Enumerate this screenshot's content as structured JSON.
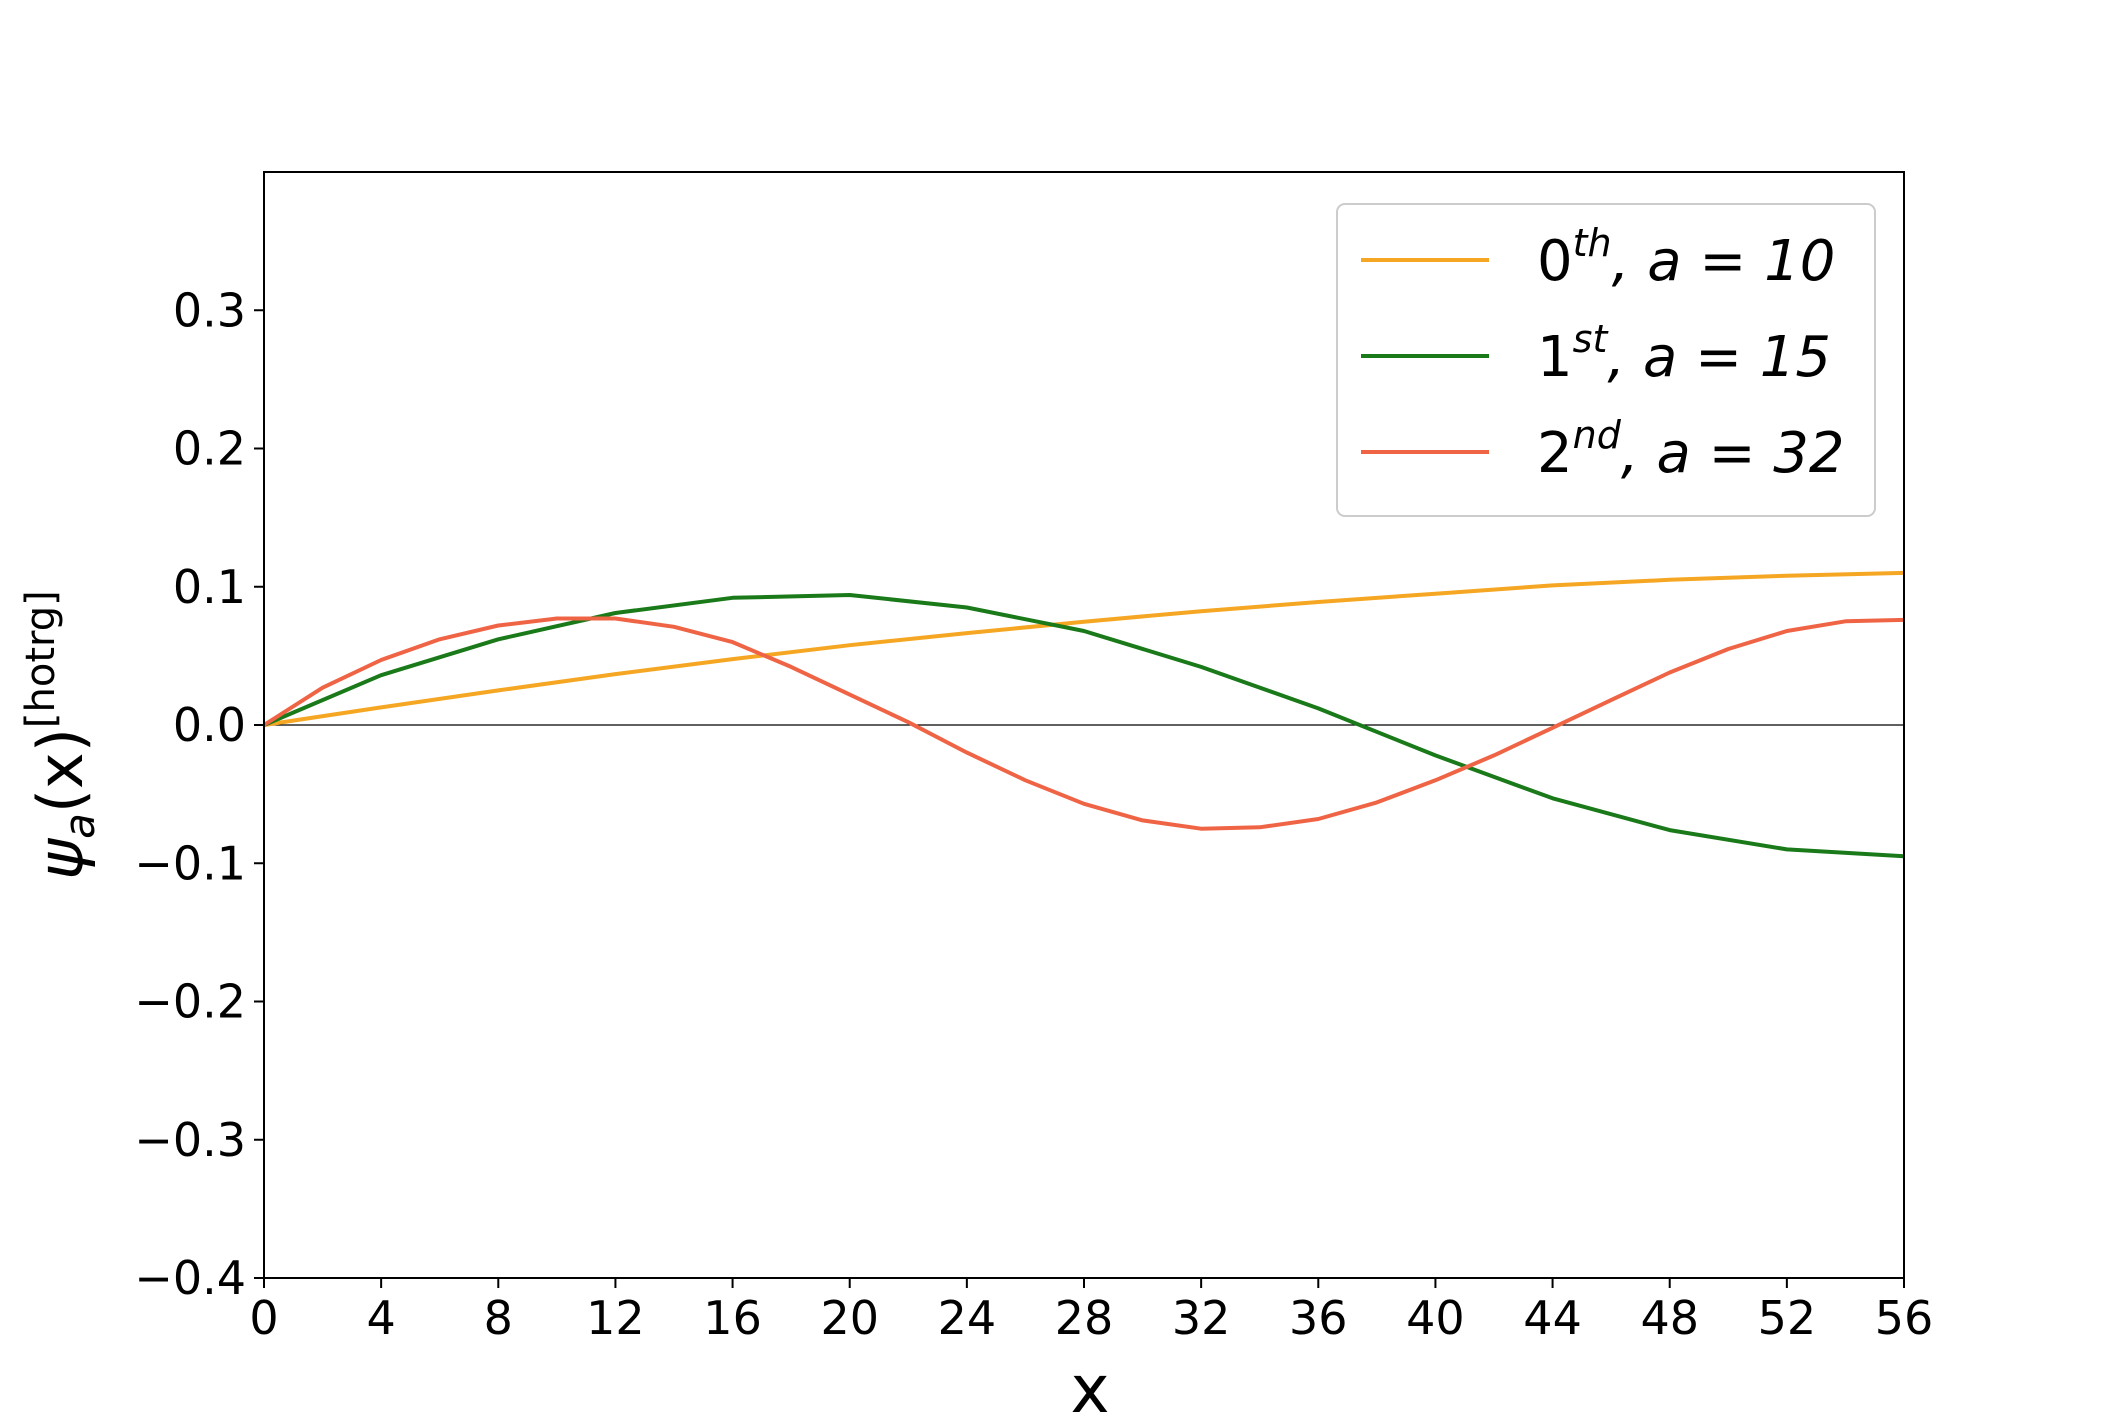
{
  "chart_data": {
    "type": "line",
    "xlabel": "x",
    "ylabel": {
      "symbol": "ψ",
      "subscript": "a",
      "argument": "(x)",
      "superscript": "[hotrg]"
    },
    "xlim": [
      0,
      56
    ],
    "ylim": [
      -0.4,
      0.4
    ],
    "xticks": [
      0,
      4,
      8,
      12,
      16,
      20,
      24,
      28,
      32,
      36,
      40,
      44,
      48,
      52,
      56
    ],
    "xtick_labels": [
      "0",
      "4",
      "8",
      "12",
      "16",
      "20",
      "24",
      "28",
      "32",
      "36",
      "40",
      "44",
      "48",
      "52",
      "56"
    ],
    "yticks": [
      0.3,
      0.2,
      0.1,
      0.0,
      -0.1,
      -0.2,
      -0.3,
      -0.4
    ],
    "ytick_labels": [
      "0.3",
      "0.2",
      "0.1",
      "0.0",
      "−0.1",
      "−0.2",
      "−0.3",
      "−0.4"
    ],
    "grid": false,
    "zero_line": true,
    "legend_position": "top-right",
    "series": [
      {
        "name": "0th, a = 10",
        "label_base": "0",
        "label_sup": "th",
        "label_rest": ", a = 10",
        "color": "#f5a623",
        "x": [
          0,
          4,
          8,
          12,
          16,
          20,
          24,
          28,
          32,
          36,
          40,
          44,
          48,
          52,
          56
        ],
        "y": [
          0.0,
          0.0127,
          0.025,
          0.0368,
          0.0477,
          0.0577,
          0.0665,
          0.0747,
          0.0823,
          0.089,
          0.095,
          0.101,
          0.105,
          0.108,
          0.11
        ]
      },
      {
        "name": "1st, a = 15",
        "label_base": "1",
        "label_sup": "st",
        "label_rest": ", a = 15",
        "color": "#1a7a1a",
        "x": [
          0,
          4,
          8,
          12,
          16,
          20,
          24,
          28,
          32,
          36,
          40,
          44,
          48,
          52,
          56
        ],
        "y": [
          0.0,
          0.036,
          0.062,
          0.081,
          0.092,
          0.094,
          0.085,
          0.068,
          0.042,
          0.012,
          -0.022,
          -0.053,
          -0.076,
          -0.09,
          -0.095
        ]
      },
      {
        "name": "2nd, a = 32",
        "label_base": "2",
        "label_sup": "nd",
        "label_rest": ", a = 32",
        "color": "#f06446",
        "x": [
          0,
          2,
          4,
          6,
          8,
          10,
          12,
          14,
          16,
          18,
          20,
          22,
          24,
          26,
          28,
          30,
          32,
          34,
          36,
          38,
          40,
          42,
          44,
          46,
          48,
          50,
          52,
          54,
          56
        ],
        "y": [
          0.0,
          0.027,
          0.047,
          0.062,
          0.072,
          0.077,
          0.077,
          0.071,
          0.06,
          0.042,
          0.022,
          0.002,
          -0.02,
          -0.04,
          -0.057,
          -0.069,
          -0.075,
          -0.074,
          -0.068,
          -0.056,
          -0.04,
          -0.022,
          -0.002,
          0.018,
          0.038,
          0.055,
          0.068,
          0.075,
          0.076
        ]
      }
    ]
  }
}
